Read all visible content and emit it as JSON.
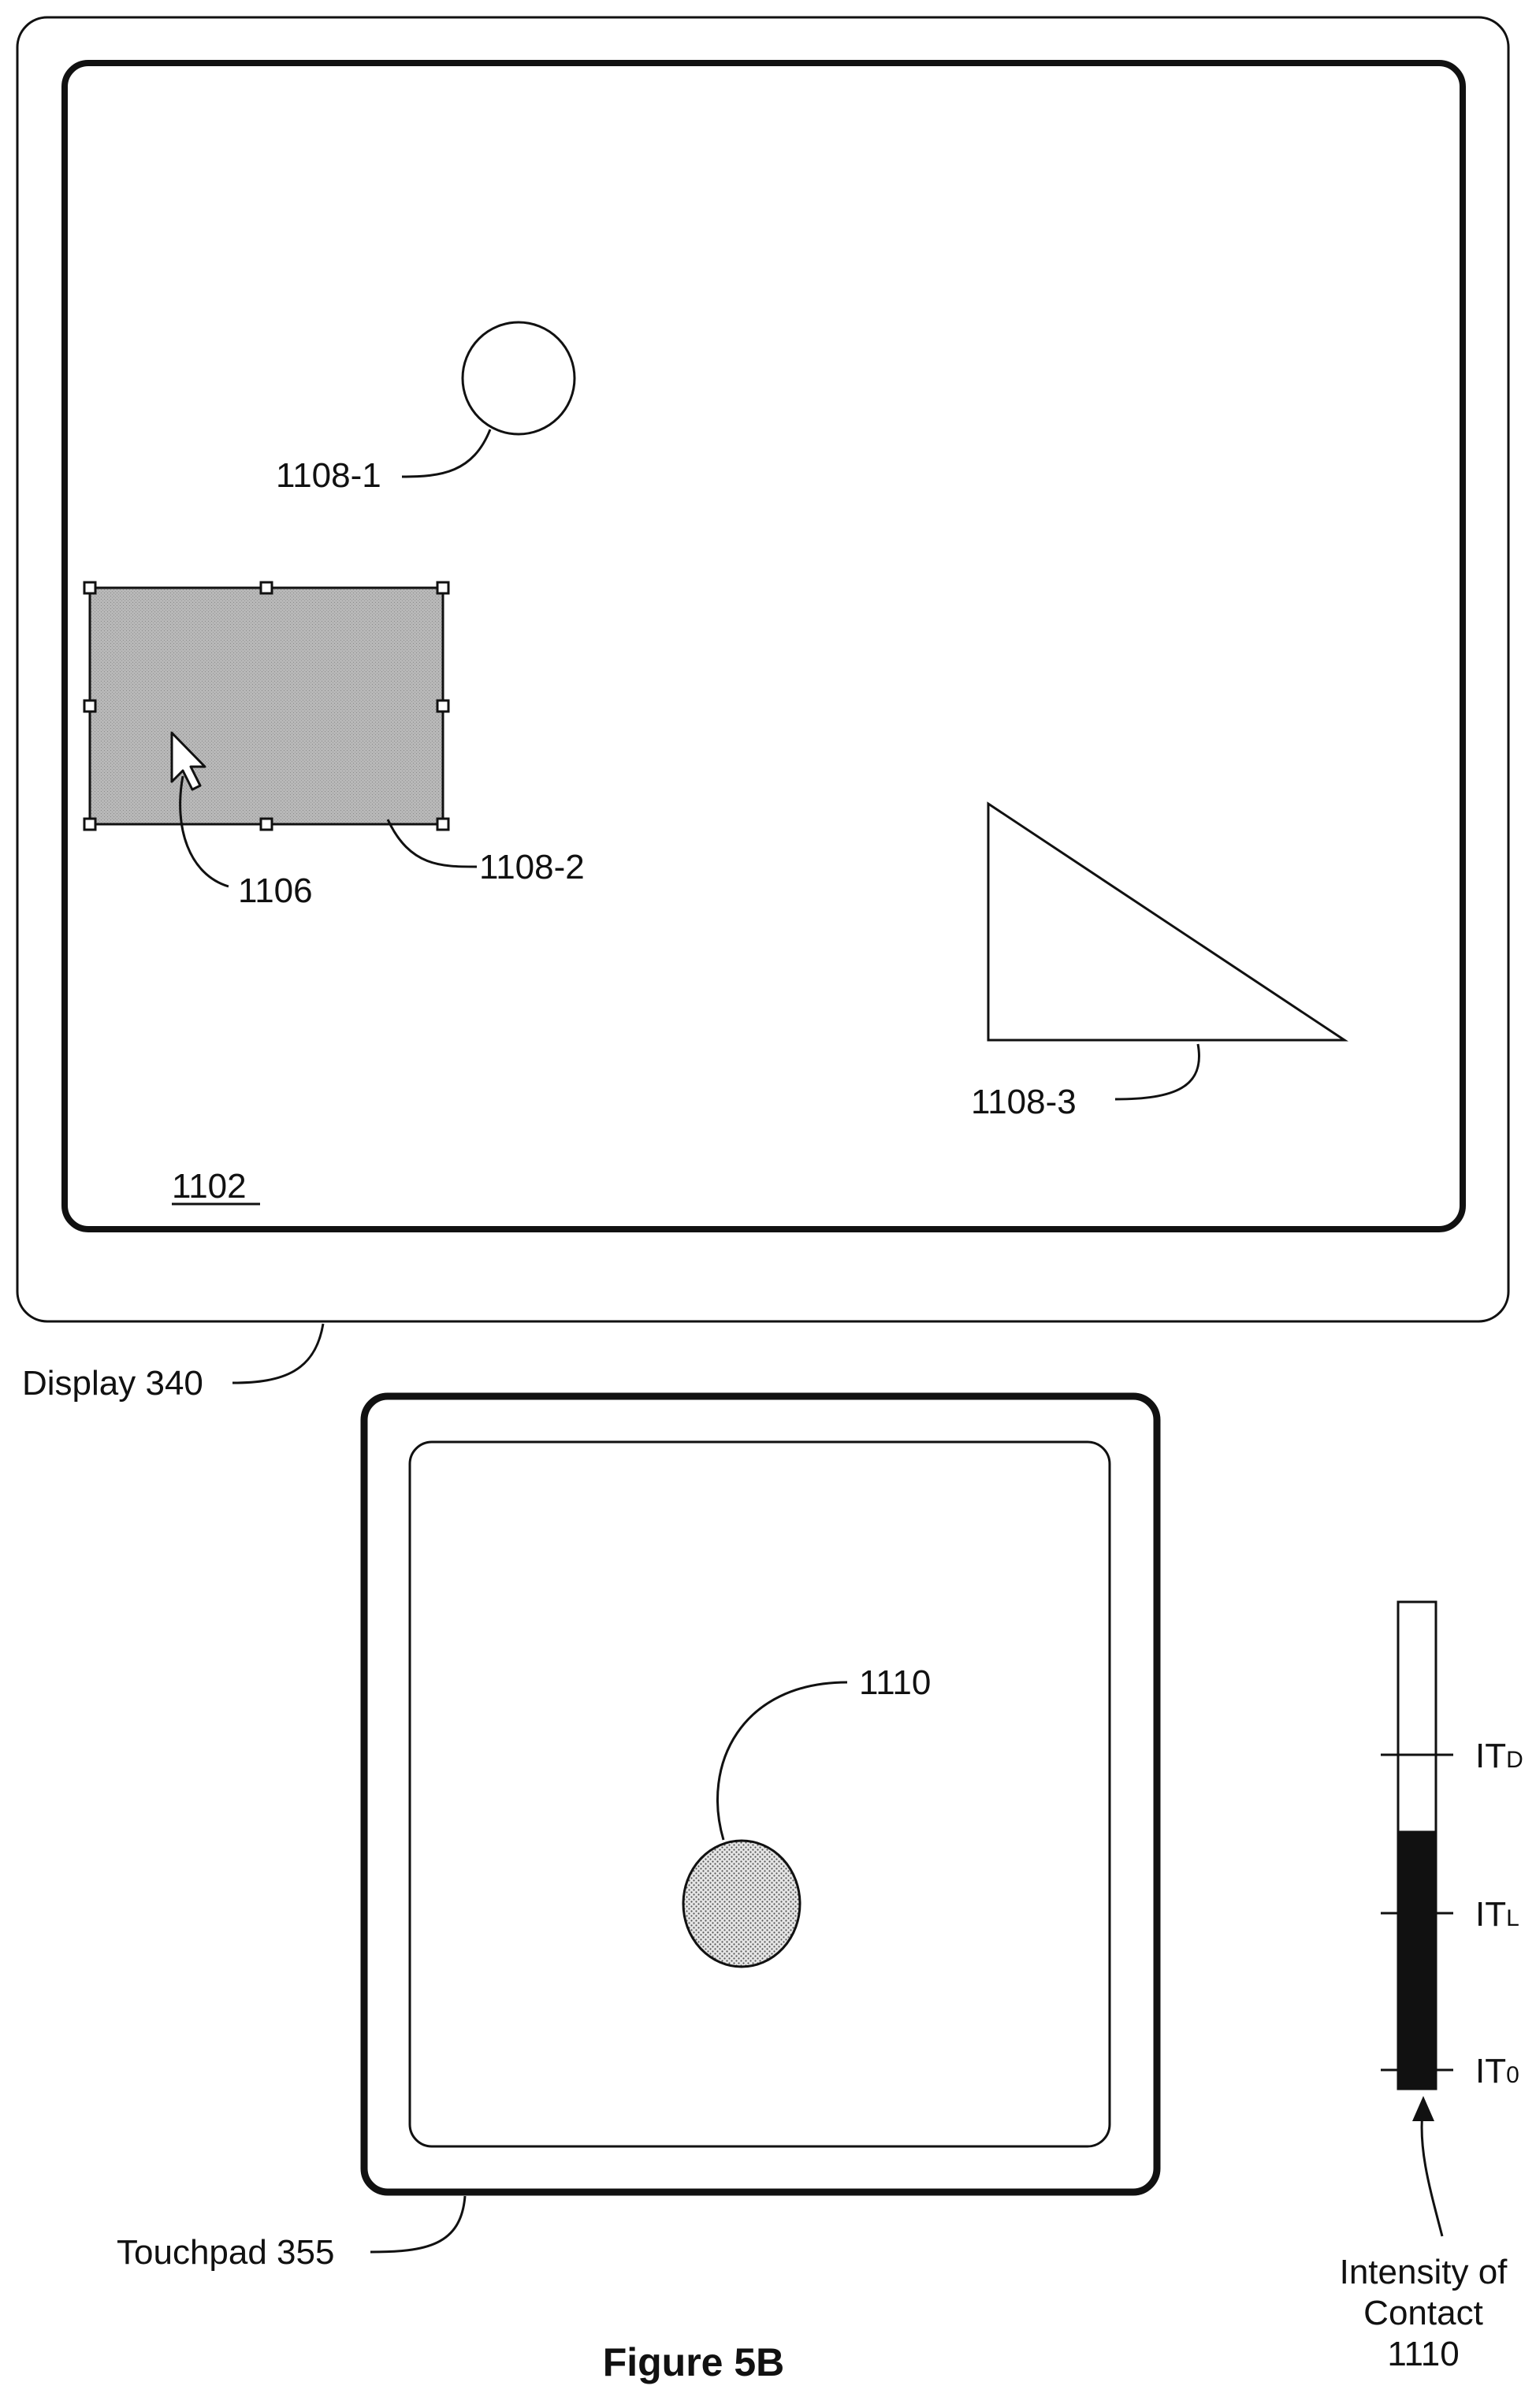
{
  "display": {
    "label": "Display 340",
    "screen_label": "1102",
    "objects": {
      "circle_label": "1108-1",
      "rectangle_label": "1108-2",
      "triangle_label": "1108-3",
      "cursor_label": "1106"
    }
  },
  "touchpad": {
    "label": "Touchpad 355",
    "contact_label": "1110"
  },
  "intensity_meter": {
    "caption_line1": "Intensity of",
    "caption_line2": "Contact",
    "caption_line3": "1110",
    "thresholds": [
      {
        "main": "IT",
        "sub": "D"
      },
      {
        "main": "IT",
        "sub": "L"
      },
      {
        "main": "IT",
        "sub": "0"
      }
    ],
    "fill_fraction": 0.53,
    "colors": {
      "fill": "#111111",
      "empty": "#ffffff"
    }
  },
  "figure_title": "Figure 5B",
  "colors": {
    "stroke": "#111111",
    "selection_fill": "#b0b0b0",
    "contact_fill": "#cfcfcf"
  }
}
